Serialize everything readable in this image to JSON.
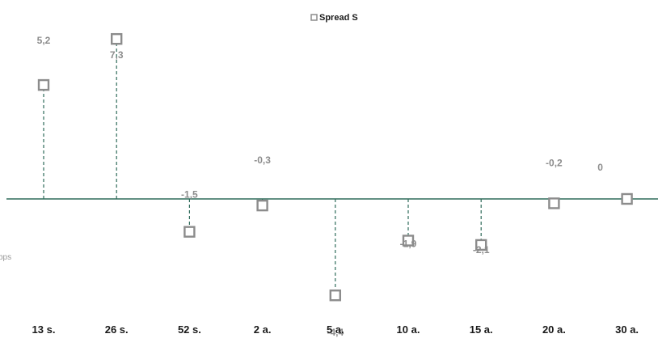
{
  "chart_data": {
    "type": "scatter",
    "title": "",
    "xlabel": "",
    "ylabel": "",
    "categories": [
      "13 s.",
      "26 s.",
      "52 s.",
      "2 a.",
      "5 a.",
      "10 a.",
      "15 a.",
      "20 a.",
      "30 a."
    ],
    "series": [
      {
        "name": "Spread S",
        "values": [
          5.2,
          7.3,
          -1.5,
          -0.3,
          -4.4,
          -1.9,
          -2.1,
          -0.2,
          0
        ],
        "labels": [
          "5,2",
          "7,3",
          "-1,5",
          "-0,3",
          "-4,4",
          "-1,9",
          "-2,1",
          "-0,2",
          "0"
        ]
      }
    ],
    "ylim": [
      -5.0,
      7.5
    ],
    "grid": false,
    "legend_position": "top-center",
    "side_label": "bps",
    "colors": {
      "marker": "#8c8c8c",
      "baseline": "#2e6b5a",
      "dropline": "#2e6b5a",
      "labels": "#8c8c8c"
    }
  }
}
